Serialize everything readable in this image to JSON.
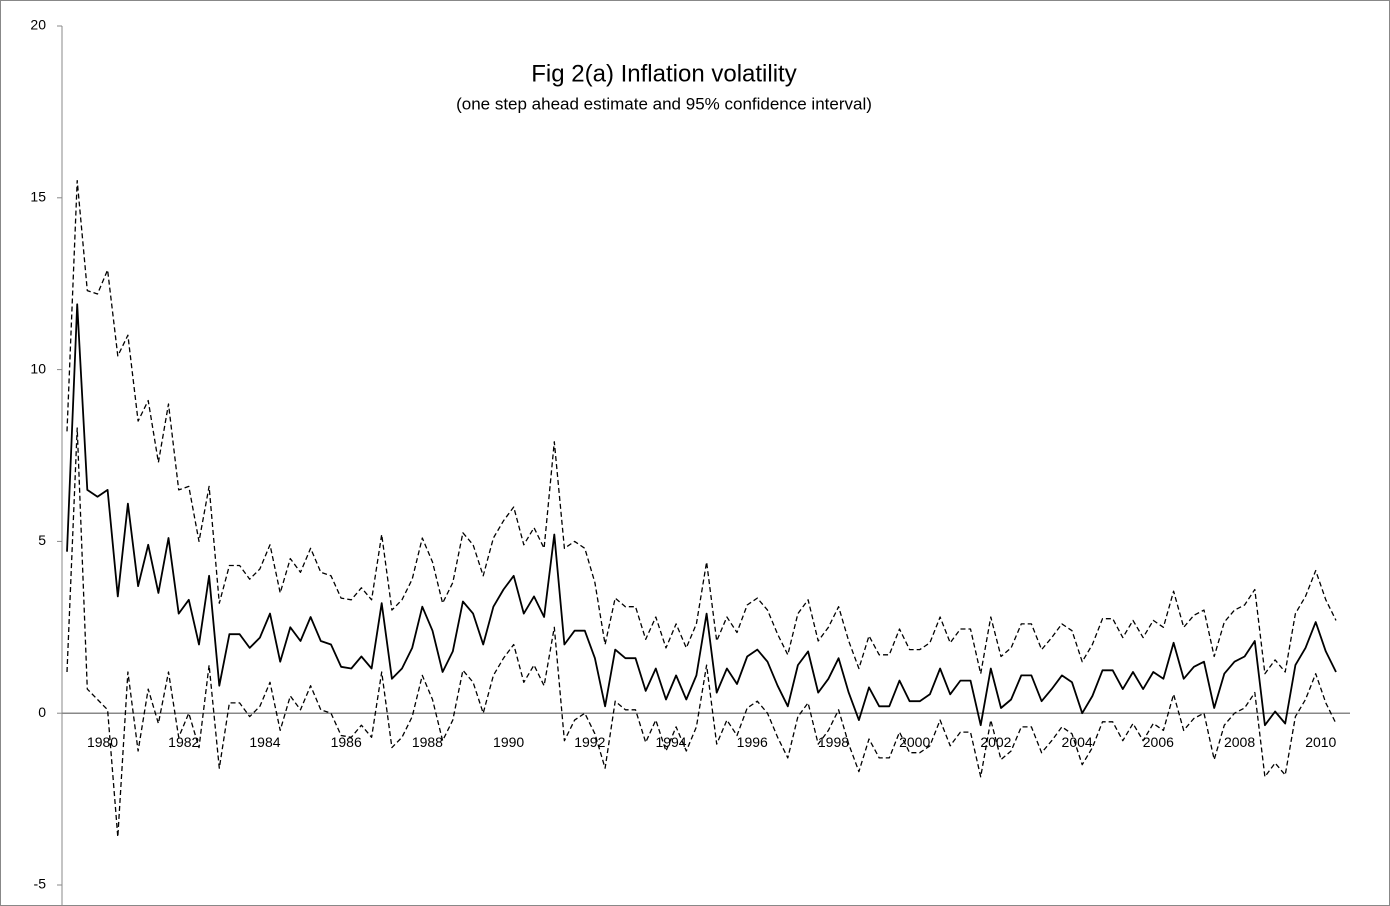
{
  "chart_data": {
    "type": "line",
    "title": "Fig 2(a) Inflation volatility",
    "subtitle": "(one step ahead estimate and 95% confidence interval)",
    "categories": [
      null,
      null,
      null,
      "1980",
      null,
      null,
      null,
      null,
      null,
      null,
      null,
      "1982",
      null,
      null,
      null,
      null,
      null,
      null,
      null,
      "1984",
      null,
      null,
      null,
      null,
      null,
      null,
      null,
      "1986",
      null,
      null,
      null,
      null,
      null,
      null,
      null,
      "1988",
      null,
      null,
      null,
      null,
      null,
      null,
      null,
      "1990",
      null,
      null,
      null,
      null,
      null,
      null,
      null,
      "1992",
      null,
      null,
      null,
      null,
      null,
      null,
      null,
      "1994",
      null,
      null,
      null,
      null,
      null,
      null,
      null,
      "1996",
      null,
      null,
      null,
      null,
      null,
      null,
      null,
      "1998",
      null,
      null,
      null,
      null,
      null,
      null,
      null,
      "2000",
      null,
      null,
      null,
      null,
      null,
      null,
      null,
      "2002",
      null,
      null,
      null,
      null,
      null,
      null,
      null,
      "2004",
      null,
      null,
      null,
      null,
      null,
      null,
      null,
      "2006",
      null,
      null,
      null,
      null,
      null,
      null,
      null,
      "2008",
      null,
      null,
      null,
      null,
      null,
      null,
      null,
      "2010",
      null,
      null
    ],
    "series": [
      {
        "color": "#000000",
        "dashed": true,
        "values": [
          1.2,
          8.3,
          0.7,
          0.4,
          0.1,
          -3.6,
          1.2,
          -1.1,
          0.7,
          -0.3,
          1.2,
          -0.7,
          0.0,
          -1.0,
          1.4,
          -1.6,
          0.3,
          0.3,
          -0.1,
          0.2,
          0.9,
          -0.5,
          0.5,
          0.1,
          0.8,
          0.1,
          0.0,
          -0.65,
          -0.7,
          -0.35,
          -0.7,
          1.2,
          -1.0,
          -0.7,
          -0.1,
          1.1,
          0.4,
          -0.8,
          -0.2,
          1.25,
          0.9,
          0.0,
          1.1,
          1.6,
          2.0,
          0.9,
          1.4,
          0.8,
          2.5,
          -0.8,
          -0.2,
          0.0,
          -0.6,
          -1.6,
          0.35,
          0.1,
          0.1,
          -0.85,
          -0.2,
          -1.1,
          -0.4,
          -1.1,
          -0.4,
          1.4,
          -0.9,
          -0.2,
          -0.65,
          0.15,
          0.35,
          0.0,
          -0.7,
          -1.3,
          -0.1,
          0.3,
          -0.9,
          -0.5,
          0.1,
          -0.9,
          -1.7,
          -0.75,
          -1.3,
          -1.3,
          -0.55,
          -1.15,
          -1.15,
          -0.95,
          -0.2,
          -0.95,
          -0.55,
          -0.55,
          -1.85,
          -0.2,
          -1.35,
          -1.1,
          -0.4,
          -0.4,
          -1.15,
          -0.8,
          -0.4,
          -0.6,
          -1.5,
          -1.0,
          -0.25,
          -0.25,
          -0.8,
          -0.3,
          -0.8,
          -0.3,
          -0.5,
          0.55,
          -0.5,
          -0.15,
          0.0,
          -1.35,
          -0.35,
          0.0,
          0.15,
          0.6,
          -1.85,
          -1.45,
          -1.8,
          -0.1,
          0.4,
          1.15,
          0.3,
          -0.3
        ]
      },
      {
        "color": "#000000",
        "dashed": true,
        "values": [
          8.2,
          15.5,
          12.3,
          12.2,
          12.9,
          10.4,
          11.0,
          8.5,
          9.1,
          7.3,
          9.0,
          6.5,
          6.6,
          5.0,
          6.6,
          3.2,
          4.3,
          4.3,
          3.9,
          4.2,
          4.9,
          3.5,
          4.5,
          4.1,
          4.8,
          4.1,
          4.0,
          3.35,
          3.3,
          3.65,
          3.3,
          5.2,
          3.0,
          3.3,
          3.9,
          5.1,
          4.4,
          3.2,
          3.8,
          5.25,
          4.9,
          4.0,
          5.1,
          5.6,
          6.0,
          4.9,
          5.4,
          4.8,
          7.9,
          4.8,
          5.0,
          4.8,
          3.8,
          2.0,
          3.35,
          3.1,
          3.1,
          2.15,
          2.8,
          1.9,
          2.6,
          1.9,
          2.6,
          4.4,
          2.1,
          2.8,
          2.35,
          3.15,
          3.35,
          3.0,
          2.3,
          1.7,
          2.9,
          3.3,
          2.1,
          2.5,
          3.1,
          2.1,
          1.3,
          2.25,
          1.7,
          1.7,
          2.45,
          1.85,
          1.85,
          2.05,
          2.8,
          2.05,
          2.45,
          2.45,
          1.15,
          2.8,
          1.65,
          1.9,
          2.6,
          2.6,
          1.85,
          2.2,
          2.6,
          2.4,
          1.5,
          2.0,
          2.75,
          2.75,
          2.2,
          2.7,
          2.2,
          2.7,
          2.5,
          3.55,
          2.5,
          2.85,
          3.0,
          1.65,
          2.65,
          3.0,
          3.15,
          3.6,
          1.15,
          1.55,
          1.2,
          2.9,
          3.4,
          4.15,
          3.3,
          2.7
        ]
      },
      {
        "color": "#000000",
        "dashed": false,
        "values": [
          4.7,
          11.9,
          6.5,
          6.3,
          6.5,
          3.4,
          6.1,
          3.7,
          4.9,
          3.5,
          5.1,
          2.9,
          3.3,
          2.0,
          4.0,
          0.8,
          2.3,
          2.3,
          1.9,
          2.2,
          2.9,
          1.5,
          2.5,
          2.1,
          2.8,
          2.1,
          2.0,
          1.35,
          1.3,
          1.65,
          1.3,
          3.2,
          1.0,
          1.3,
          1.9,
          3.1,
          2.4,
          1.2,
          1.8,
          3.25,
          2.9,
          2.0,
          3.1,
          3.6,
          4.0,
          2.9,
          3.4,
          2.8,
          5.2,
          2.0,
          2.4,
          2.4,
          1.6,
          0.2,
          1.85,
          1.6,
          1.6,
          0.65,
          1.3,
          0.4,
          1.1,
          0.4,
          1.1,
          2.9,
          0.6,
          1.3,
          0.85,
          1.65,
          1.85,
          1.5,
          0.8,
          0.2,
          1.4,
          1.8,
          0.6,
          1.0,
          1.6,
          0.6,
          -0.2,
          0.75,
          0.2,
          0.2,
          0.95,
          0.35,
          0.35,
          0.55,
          1.3,
          0.55,
          0.95,
          0.95,
          -0.35,
          1.3,
          0.15,
          0.4,
          1.1,
          1.1,
          0.35,
          0.7,
          1.1,
          0.9,
          0.0,
          0.5,
          1.25,
          1.25,
          0.7,
          1.2,
          0.7,
          1.2,
          1.0,
          2.05,
          1.0,
          1.35,
          1.5,
          0.15,
          1.15,
          1.5,
          1.65,
          2.1,
          -0.35,
          0.05,
          -0.3,
          1.4,
          1.9,
          2.65,
          1.8,
          1.2
        ]
      }
    ],
    "ylim": [
      -5,
      20
    ],
    "yticks": [
      -5,
      0,
      5,
      10,
      15,
      20
    ]
  }
}
